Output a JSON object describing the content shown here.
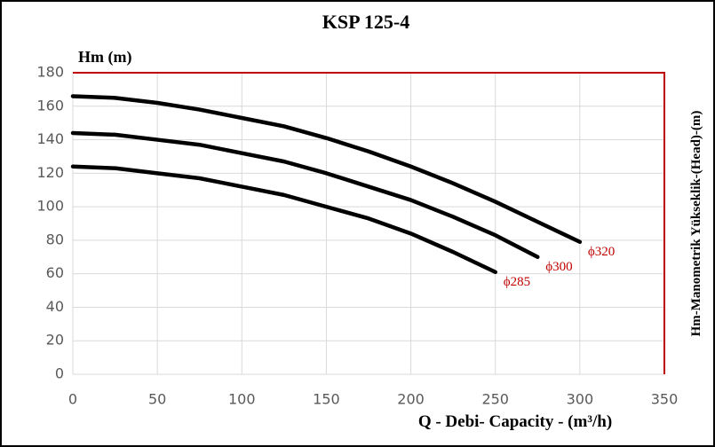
{
  "chart_data": {
    "type": "line",
    "title": "KSP 125-4",
    "y_label": "Hm (m)",
    "y2_label": "Hm-Manometrik Yükseklik-(Head)-(m)",
    "x_label": "Q - Debi- Capacity - (m³/h)",
    "xlim": [
      0,
      350
    ],
    "xticks": [
      0,
      50,
      100,
      150,
      200,
      250,
      300,
      350
    ],
    "ylim": [
      0,
      180
    ],
    "yticks": [
      0,
      20,
      40,
      60,
      80,
      100,
      120,
      140,
      160,
      180
    ],
    "grid": true,
    "series": [
      {
        "name": "ϕ320",
        "color": "#000000",
        "x": [
          0,
          25,
          50,
          75,
          100,
          125,
          150,
          175,
          200,
          225,
          250,
          275,
          300
        ],
        "values": [
          166,
          165,
          162,
          158,
          153,
          148,
          141,
          133,
          124,
          114,
          103,
          91,
          79
        ]
      },
      {
        "name": "ϕ300",
        "color": "#000000",
        "x": [
          0,
          25,
          50,
          75,
          100,
          125,
          150,
          175,
          200,
          225,
          250,
          275
        ],
        "values": [
          144,
          143,
          140,
          137,
          132,
          127,
          120,
          112,
          104,
          94,
          83,
          70
        ]
      },
      {
        "name": "ϕ285",
        "color": "#000000",
        "x": [
          0,
          25,
          50,
          75,
          100,
          125,
          150,
          175,
          200,
          225,
          250
        ],
        "values": [
          124,
          123,
          120,
          117,
          112,
          107,
          100,
          93,
          84,
          73,
          61
        ]
      }
    ]
  }
}
